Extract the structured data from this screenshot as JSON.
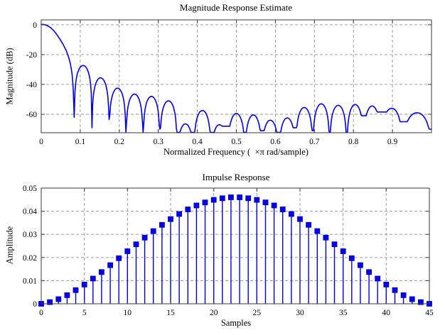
{
  "window": {
    "background": "#ffffff"
  },
  "palette": {
    "line_blue": "#0000ee",
    "marker_fill": "#0202f0",
    "marker_edge": "#0000c0",
    "grid_gray": "#8f8f8f",
    "axis_dark": "#3a3a3a",
    "text_black": "#000000"
  },
  "chart_data": [
    {
      "type": "line",
      "title": "Magnitude Response Estimate",
      "xlabel": "Normalized Frequency (  ×π rad/sample)",
      "ylabel": "Magnitude (dB)",
      "xlim": [
        0,
        1
      ],
      "ylim": [
        -72.4,
        3.3
      ],
      "xticks": [
        0,
        0.1,
        0.2,
        0.3,
        0.4,
        0.5,
        0.6,
        0.7,
        0.8,
        0.9
      ],
      "yticks": [
        0,
        -20,
        -40,
        -60
      ],
      "grid": true,
      "legend": null,
      "line_color": "#0000ee",
      "series": [
        {
          "name": "magnitude-response-db",
          "mainlobe_points": [
            [
              0,
              0.3
            ],
            [
              0.008,
              0.15
            ],
            [
              0.016,
              -0.6
            ],
            [
              0.024,
              -1.9
            ],
            [
              0.032,
              -4.0
            ],
            [
              0.04,
              -6.6
            ],
            [
              0.048,
              -9.7
            ],
            [
              0.056,
              -13.1
            ],
            [
              0.064,
              -17.2
            ],
            [
              0.07,
              -21.5
            ],
            [
              0.075,
              -26.5
            ],
            [
              0.079,
              -33
            ],
            [
              0.082,
              -43
            ],
            [
              0.0845,
              -62
            ]
          ],
          "nulls": [
            {
              "f": 0.0845,
              "db": -62
            },
            {
              "f": 0.13,
              "db": -69
            },
            {
              "f": 0.174,
              "db": -63.5
            },
            {
              "f": 0.217,
              "db": -72.2
            },
            {
              "f": 0.261,
              "db": -72.2
            },
            {
              "f": 0.304,
              "db": -70
            },
            {
              "f": 0.348,
              "db": -72.2
            },
            {
              "f": 0.391,
              "db": -72.2
            },
            {
              "f": 0.435,
              "db": -72.2
            },
            {
              "f": 0.478,
              "db": -68
            },
            {
              "f": 0.522,
              "db": -72.2
            },
            {
              "f": 0.565,
              "db": -71
            },
            {
              "f": 0.609,
              "db": -72.2
            },
            {
              "f": 0.652,
              "db": -69
            },
            {
              "f": 0.696,
              "db": -71
            },
            {
              "f": 0.739,
              "db": -72.2
            },
            {
              "f": 0.783,
              "db": -72.2
            },
            {
              "f": 0.826,
              "db": -61
            },
            {
              "f": 0.87,
              "db": -58.5
            },
            {
              "f": 0.926,
              "db": -65
            },
            {
              "f": 1,
              "db": -70
            }
          ],
          "sidelobe_peaks_db": [
            -27.3,
            -35.6,
            -42.5,
            -46.5,
            -48,
            -51,
            -66.5,
            -57.5,
            -67,
            -59.5,
            -60.5,
            -64,
            -62.5,
            -55.5,
            -53,
            -54,
            -53.5,
            -54.5,
            -56,
            -59
          ]
        }
      ]
    },
    {
      "type": "stem",
      "title": "Impulse Response",
      "xlabel": "Samples",
      "ylabel": "Amplitude",
      "xlim": [
        0,
        45
      ],
      "ylim": [
        0,
        0.05
      ],
      "xticks": [
        0,
        5,
        10,
        15,
        20,
        25,
        30,
        35,
        40,
        45
      ],
      "yticks": [
        0,
        0.01,
        0.02,
        0.03,
        0.04,
        0.05
      ],
      "grid": true,
      "legend": null,
      "stem_color": "#0000ee",
      "x": [
        0,
        1,
        2,
        3,
        4,
        5,
        6,
        7,
        8,
        9,
        10,
        11,
        12,
        13,
        14,
        15,
        16,
        17,
        18,
        19,
        20,
        21,
        22,
        23,
        24,
        25,
        26,
        27,
        28,
        29,
        30,
        31,
        32,
        33,
        34,
        35,
        36,
        37,
        38,
        39,
        40,
        41,
        42,
        43,
        44,
        45
      ],
      "values": [
        0,
        0.0007,
        0.002,
        0.0037,
        0.0059,
        0.0083,
        0.0109,
        0.0137,
        0.0167,
        0.0197,
        0.0227,
        0.0257,
        0.0286,
        0.0314,
        0.0341,
        0.0366,
        0.0388,
        0.0408,
        0.0425,
        0.0438,
        0.0449,
        0.0456,
        0.046,
        0.046,
        0.0456,
        0.0449,
        0.0438,
        0.0425,
        0.0408,
        0.0388,
        0.0366,
        0.0341,
        0.0314,
        0.0286,
        0.0257,
        0.0227,
        0.0197,
        0.0167,
        0.0137,
        0.0109,
        0.0083,
        0.0059,
        0.0037,
        0.002,
        0.0007,
        0
      ]
    }
  ]
}
